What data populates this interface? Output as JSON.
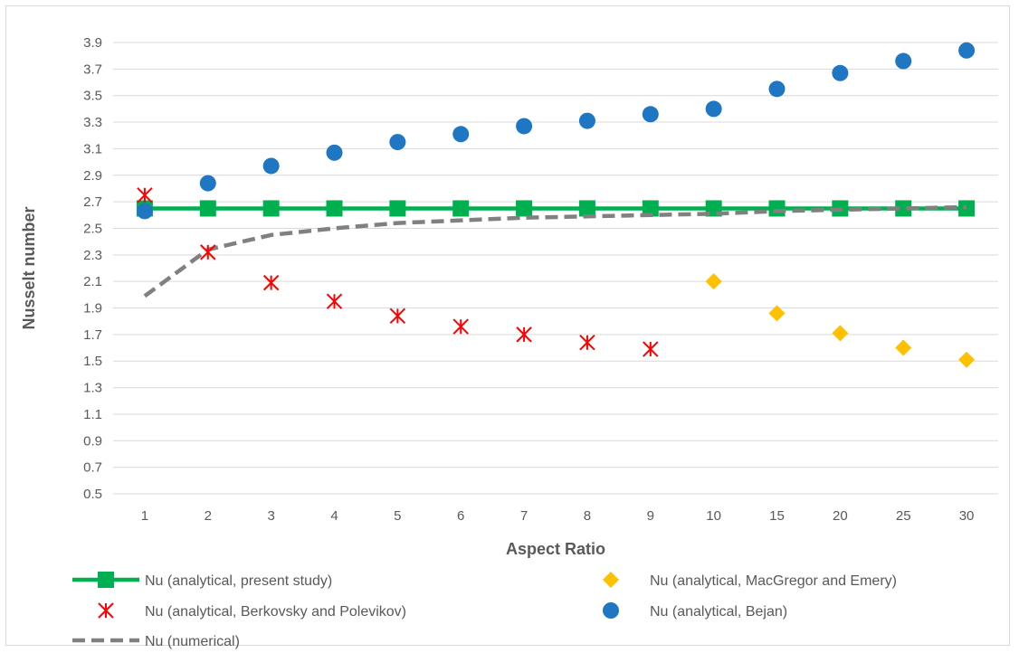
{
  "chart_data": {
    "type": "line",
    "title": "",
    "xlabel": "Aspect Ratio",
    "ylabel": "Nusselt number",
    "categories": [
      "1",
      "2",
      "3",
      "4",
      "5",
      "6",
      "7",
      "8",
      "9",
      "10",
      "15",
      "20",
      "25",
      "30"
    ],
    "ylim": [
      0.5,
      3.9
    ],
    "yticks": [
      "0.5",
      "0.7",
      "0.9",
      "1.1",
      "1.3",
      "1.5",
      "1.7",
      "1.9",
      "2.1",
      "2.3",
      "2.5",
      "2.7",
      "2.9",
      "3.1",
      "3.3",
      "3.5",
      "3.7",
      "3.9"
    ],
    "grid": true,
    "legend_position": "bottom",
    "series": [
      {
        "name": "Nu (analytical, present study)",
        "style": "line-square",
        "color": "#00b050",
        "values": [
          2.65,
          2.65,
          2.65,
          2.65,
          2.65,
          2.65,
          2.65,
          2.65,
          2.65,
          2.65,
          2.65,
          2.65,
          2.65,
          2.65
        ]
      },
      {
        "name": "Nu (analytical, MacGregor and Emery)",
        "style": "diamond",
        "color": "#ffc000",
        "values": [
          null,
          null,
          null,
          null,
          null,
          null,
          null,
          null,
          null,
          2.1,
          1.86,
          1.71,
          1.6,
          1.51
        ]
      },
      {
        "name": "Nu (analytical, Berkovsky and Polevikov)",
        "style": "star",
        "color": "#ff0000",
        "values": [
          2.75,
          2.32,
          2.09,
          1.95,
          1.84,
          1.76,
          1.7,
          1.64,
          1.59,
          null,
          null,
          null,
          null,
          null
        ]
      },
      {
        "name": "Nu (analytical, Bejan)",
        "style": "circle",
        "color": "#1f77c4",
        "values": [
          2.63,
          2.84,
          2.97,
          3.07,
          3.15,
          3.21,
          3.27,
          3.31,
          3.36,
          3.4,
          3.55,
          3.67,
          3.76,
          3.84
        ]
      },
      {
        "name": "Nu (numerical)",
        "style": "dashed-line",
        "color": "#808080",
        "values": [
          1.99,
          2.34,
          2.45,
          2.5,
          2.54,
          2.56,
          2.58,
          2.59,
          2.6,
          2.61,
          2.63,
          2.64,
          2.65,
          2.66
        ]
      }
    ]
  }
}
